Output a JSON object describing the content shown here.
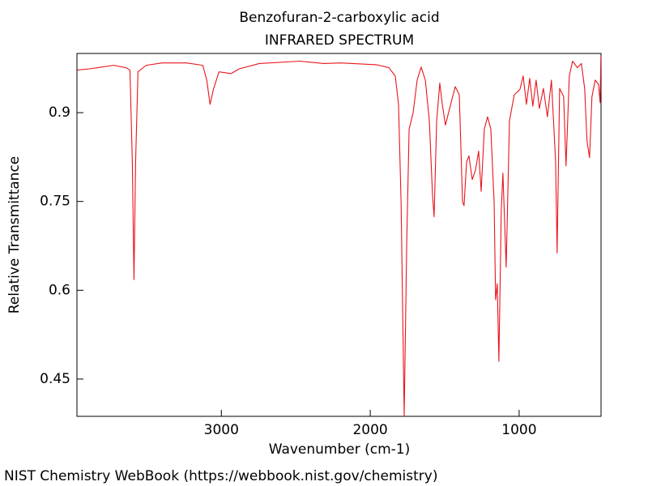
{
  "chart_data": {
    "type": "line",
    "title": "Benzofuran-2-carboxylic acid",
    "subtitle": "INFRARED SPECTRUM",
    "x_label": "Wavenumber (cm-1)",
    "y_label": "Relative Transmittance",
    "footer": "NIST Chemistry WebBook (https://webbook.nist.gov/chemistry)",
    "xlim": [
      3970,
      450
    ],
    "ylim": [
      0.387,
      1.0
    ],
    "xticks": [
      3000,
      2000,
      1000
    ],
    "yticks": [
      0.45,
      0.6,
      0.75,
      0.9
    ],
    "x": [
      3967,
      3886,
      3804,
      3723,
      3641,
      3614,
      3598,
      3587,
      3576,
      3560,
      3505,
      3397,
      3234,
      3125,
      3098,
      3076,
      3054,
      3016,
      2935,
      2880,
      2745,
      2473,
      2310,
      2201,
      1957,
      1875,
      1832,
      1810,
      1793,
      1772,
      1755,
      1739,
      1712,
      1685,
      1658,
      1630,
      1603,
      1582,
      1571,
      1554,
      1533,
      1516,
      1495,
      1467,
      1429,
      1402,
      1380,
      1370,
      1353,
      1337,
      1315,
      1293,
      1272,
      1255,
      1234,
      1212,
      1190,
      1168,
      1158,
      1147,
      1136,
      1120,
      1109,
      1087,
      1065,
      1033,
      995,
      973,
      951,
      929,
      908,
      886,
      864,
      837,
      810,
      783,
      755,
      745,
      728,
      701,
      685,
      663,
      641,
      609,
      582,
      560,
      544,
      527,
      511,
      489,
      467,
      456,
      451
    ],
    "series": [
      {
        "name": "Transmittance",
        "color": "#e8141c",
        "values": [
          0.972,
          0.974,
          0.977,
          0.98,
          0.976,
          0.972,
          0.817,
          0.618,
          0.817,
          0.969,
          0.98,
          0.984,
          0.984,
          0.98,
          0.955,
          0.914,
          0.939,
          0.969,
          0.966,
          0.974,
          0.983,
          0.987,
          0.983,
          0.984,
          0.981,
          0.976,
          0.962,
          0.914,
          0.749,
          0.388,
          0.68,
          0.872,
          0.9,
          0.955,
          0.977,
          0.955,
          0.886,
          0.762,
          0.724,
          0.886,
          0.95,
          0.914,
          0.879,
          0.907,
          0.944,
          0.93,
          0.749,
          0.743,
          0.817,
          0.827,
          0.787,
          0.803,
          0.835,
          0.767,
          0.872,
          0.893,
          0.872,
          0.749,
          0.584,
          0.611,
          0.48,
          0.735,
          0.798,
          0.639,
          0.886,
          0.93,
          0.939,
          0.962,
          0.914,
          0.958,
          0.911,
          0.955,
          0.907,
          0.941,
          0.893,
          0.955,
          0.817,
          0.663,
          0.941,
          0.927,
          0.81,
          0.962,
          0.987,
          0.976,
          0.983,
          0.941,
          0.852,
          0.824,
          0.927,
          0.955,
          0.948,
          0.917,
          0.996
        ]
      }
    ]
  }
}
